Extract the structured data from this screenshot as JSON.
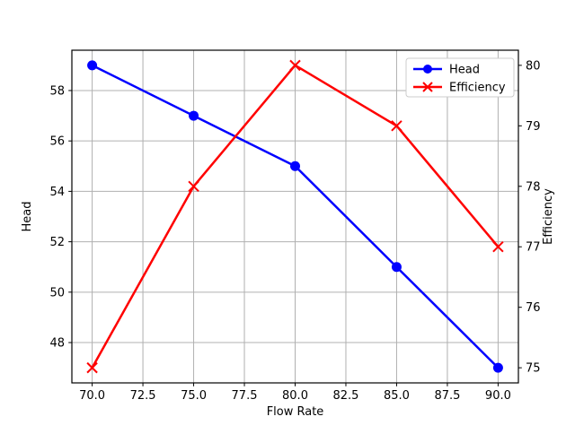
{
  "chart_data": {
    "type": "line",
    "title": "",
    "xlabel": "Flow Rate",
    "ylabel_left": "Head",
    "ylabel_right": "Efficiency",
    "x": [
      70,
      75,
      80,
      85,
      90
    ],
    "series": [
      {
        "name": "Head",
        "yaxis": "left",
        "color": "#0000ff",
        "marker": "circle",
        "values": [
          59,
          57,
          55,
          51,
          47
        ]
      },
      {
        "name": "Efficiency",
        "yaxis": "right",
        "color": "#ff0000",
        "marker": "x",
        "values": [
          75,
          78,
          80,
          79,
          77
        ]
      }
    ],
    "xlim": [
      69,
      91
    ],
    "ylim_left": [
      46.4,
      59.6
    ],
    "ylim_right": [
      74.75,
      80.25
    ],
    "xticks": {
      "values": [
        70,
        72.5,
        75,
        77.5,
        80,
        82.5,
        85,
        87.5,
        90
      ],
      "labels": [
        "70.0",
        "72.5",
        "75.0",
        "77.5",
        "80.0",
        "82.5",
        "85.0",
        "87.5",
        "90.0"
      ]
    },
    "yticks_left": {
      "values": [
        48,
        50,
        52,
        54,
        56,
        58
      ],
      "labels": [
        "48",
        "50",
        "52",
        "54",
        "56",
        "58"
      ]
    },
    "yticks_right": {
      "values": [
        75,
        76,
        77,
        78,
        79,
        80
      ],
      "labels": [
        "75",
        "76",
        "77",
        "78",
        "79",
        "80"
      ]
    },
    "grid": true,
    "grid_color": "#b0b0b0",
    "axis_color": "#000000",
    "background_color": "#ffffff",
    "legend": {
      "position": "upper right",
      "entries": [
        "Head",
        "Efficiency"
      ]
    }
  }
}
